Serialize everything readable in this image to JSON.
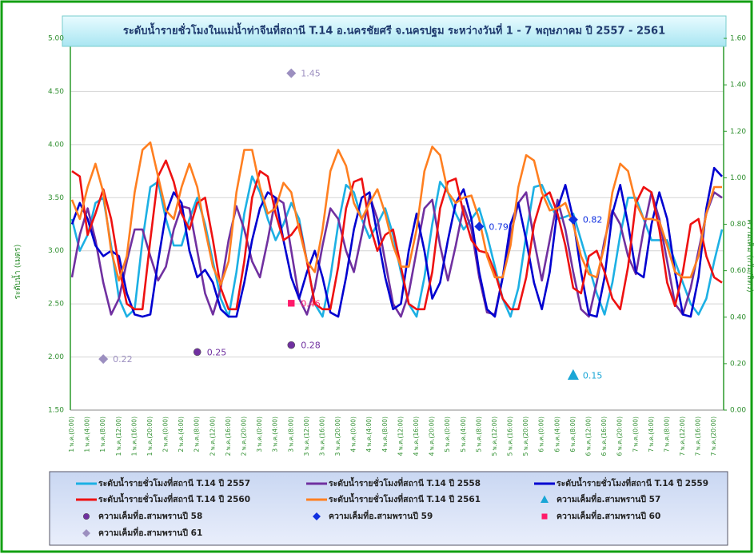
{
  "chart_data": {
    "type": "line",
    "title": "ระดับน้ำรายชั่วโมงในแม่น้ำท่าจีนที่สถานี T.14 อ.นครชัยศรี จ.นครปฐม ระหว่างวันที่ 1 - 7 พฤษภาคม ปี 2557 - 2561",
    "y_label": "ระดับน้ำ (เมตร)",
    "y2_label": "ความเค็ม (กรัม/ลิตร)",
    "categories": [
      "1 พ.ค.(0:00)",
      null,
      "1 พ.ค.(4:00)",
      null,
      "1 พ.ค.(8:00)",
      null,
      "1 พ.ค.(12:00)",
      null,
      "1 พ.ค.(16:00)",
      null,
      "1 พ.ค.(20:00)",
      null,
      "2 พ.ค.(0:00)",
      null,
      "2 พ.ค.(4:00)",
      null,
      "2 พ.ค.(8:00)",
      null,
      "2 พ.ค.(12:00)",
      null,
      "2 พ.ค.(16:00)",
      null,
      "2 พ.ค.(20:00)",
      null,
      "3 พ.ค.(0:00)",
      null,
      "3 พ.ค.(4:00)",
      null,
      "3 พ.ค.(8:00)",
      null,
      "3 พ.ค.(12:00)",
      null,
      "3 พ.ค.(16:00)",
      null,
      "3 พ.ค.(20:00)",
      null,
      "4 พ.ค.(0:00)",
      null,
      "4 พ.ค.(4:00)",
      null,
      "4 พ.ค.(8:00)",
      null,
      "4 พ.ค.(12:00)",
      null,
      "4 พ.ค.(16:00)",
      null,
      "4 พ.ค.(20:00)",
      null,
      "5 พ.ค.(0:00)",
      null,
      "5 พ.ค.(4:00)",
      null,
      "5 พ.ค.(8:00)",
      null,
      "5 พ.ค.(12:00)",
      null,
      "5 พ.ค.(16:00)",
      null,
      "5 พ.ค.(20:00)",
      null,
      "6 พ.ค.(0:00)",
      null,
      "6 พ.ค.(4:00)",
      null,
      "6 พ.ค.(8:00)",
      null,
      "6 พ.ค.(12:00)",
      null,
      "6 พ.ค.(16:00)",
      null,
      "6 พ.ค.(20:00)",
      null,
      "7 พ.ค.(0:00)",
      null,
      "7 พ.ค.(4:00)",
      null,
      "7 พ.ค.(8:00)",
      null,
      "7 พ.ค.(12:00)",
      null,
      "7 พ.ค.(16:00)",
      null,
      "7 พ.ค.(20:00)",
      null
    ],
    "ylim": [
      1.5,
      5
    ],
    "yticks": [
      {
        "value": 1.5,
        "label": "1.50"
      },
      {
        "value": 2,
        "label": "2.00"
      },
      {
        "value": 2.5,
        "label": "2.50"
      },
      {
        "value": 3,
        "label": "3.00"
      },
      {
        "value": 3.5,
        "label": "3.50"
      },
      {
        "value": 4,
        "label": "4.00"
      },
      {
        "value": 4.5,
        "label": "4.50"
      },
      {
        "value": 5,
        "label": "5.00"
      }
    ],
    "y2lim": [
      0,
      1.6
    ],
    "y2ticks": [
      {
        "value": 0,
        "label": "0.00"
      },
      {
        "value": 0.2,
        "label": "0.20"
      },
      {
        "value": 0.4,
        "label": "0.40"
      },
      {
        "value": 0.6,
        "label": "0.60"
      },
      {
        "value": 0.8,
        "label": "0.80"
      },
      {
        "value": 1,
        "label": "1.00"
      },
      {
        "value": 1.2,
        "label": "1.20"
      },
      {
        "value": 1.4,
        "label": "1.40"
      },
      {
        "value": 1.6,
        "label": "1.60"
      }
    ],
    "grid": true,
    "series": [
      {
        "name": "ระดับน้ำรายชั่วโมงที่สถานี T.14 ปี 2557",
        "type": "line",
        "color": "#1cb0e4",
        "values": [
          3.3,
          3.0,
          3.15,
          3.45,
          3.5,
          3.05,
          2.55,
          2.38,
          2.45,
          3.1,
          3.6,
          3.65,
          3.3,
          3.05,
          3.05,
          3.3,
          3.5,
          3.25,
          2.9,
          2.55,
          2.38,
          2.8,
          3.35,
          3.7,
          3.55,
          3.3,
          3.1,
          3.25,
          3.45,
          3.3,
          2.9,
          2.5,
          2.38,
          2.75,
          3.25,
          3.62,
          3.55,
          3.3,
          3.12,
          3.25,
          3.4,
          3.15,
          2.8,
          2.5,
          2.38,
          2.75,
          3.25,
          3.65,
          3.55,
          3.35,
          3.2,
          3.3,
          3.4,
          3.15,
          2.85,
          2.55,
          2.38,
          2.65,
          3.15,
          3.6,
          3.62,
          3.45,
          3.3,
          3.32,
          3.35,
          3.1,
          2.85,
          2.6,
          2.4,
          2.7,
          3.15,
          3.5,
          3.5,
          3.3,
          3.1,
          3.1,
          3.1,
          2.9,
          2.7,
          2.5,
          2.4,
          2.55,
          2.9,
          3.2
        ]
      },
      {
        "name": "ระดับน้ำรายชั่วโมงที่สถานี T.14  ปี 2558",
        "type": "line",
        "color": "#7030a0",
        "values": [
          2.75,
          3.15,
          3.4,
          3.1,
          2.7,
          2.4,
          2.55,
          2.9,
          3.2,
          3.2,
          2.95,
          2.72,
          2.85,
          3.2,
          3.42,
          3.4,
          3.0,
          2.6,
          2.4,
          2.65,
          3.1,
          3.42,
          3.2,
          2.9,
          2.75,
          3.1,
          3.5,
          3.45,
          3.0,
          2.55,
          2.4,
          2.65,
          3.05,
          3.4,
          3.3,
          3.0,
          2.8,
          3.15,
          3.52,
          3.3,
          2.9,
          2.5,
          2.38,
          2.6,
          3.0,
          3.4,
          3.48,
          3.05,
          2.72,
          3.05,
          3.42,
          3.2,
          2.75,
          2.42,
          2.4,
          2.75,
          3.15,
          3.45,
          3.55,
          3.1,
          2.72,
          3.1,
          3.48,
          3.2,
          2.8,
          2.45,
          2.38,
          2.7,
          3.1,
          3.38,
          3.25,
          2.95,
          2.78,
          3.2,
          3.55,
          3.3,
          2.9,
          2.5,
          2.4,
          2.65,
          3.0,
          3.35,
          3.55,
          3.5
        ]
      },
      {
        "name": "ระดับน้ำรายชั่วโมงที่สถานี T.14 ปี 2559",
        "type": "line",
        "color": "#0000d0",
        "values": [
          3.25,
          3.45,
          3.3,
          3.05,
          2.95,
          3.0,
          2.95,
          2.6,
          2.4,
          2.38,
          2.4,
          2.9,
          3.35,
          3.55,
          3.45,
          3.0,
          2.75,
          2.82,
          2.7,
          2.45,
          2.38,
          2.38,
          2.7,
          3.1,
          3.4,
          3.55,
          3.5,
          3.1,
          2.75,
          2.55,
          2.8,
          3.0,
          2.75,
          2.42,
          2.38,
          2.75,
          3.2,
          3.5,
          3.55,
          3.15,
          2.75,
          2.45,
          2.5,
          3.0,
          3.35,
          3.0,
          2.55,
          2.7,
          3.1,
          3.45,
          3.58,
          3.3,
          2.8,
          2.45,
          2.38,
          2.75,
          3.25,
          3.45,
          3.1,
          2.7,
          2.45,
          2.8,
          3.4,
          3.62,
          3.3,
          2.8,
          2.4,
          2.38,
          2.75,
          3.35,
          3.62,
          3.25,
          2.8,
          2.75,
          3.25,
          3.55,
          3.3,
          2.8,
          2.4,
          2.38,
          2.75,
          3.4,
          3.78,
          3.7
        ]
      },
      {
        "name": "ระดับน้ำรายชั่วโมงที่สถานี T.14 ปี 2560",
        "type": "line",
        "color": "#ee1111",
        "values": [
          3.75,
          3.7,
          3.15,
          3.35,
          3.58,
          3.3,
          2.85,
          2.5,
          2.45,
          2.45,
          3.1,
          3.7,
          3.85,
          3.65,
          3.35,
          3.2,
          3.45,
          3.5,
          3.1,
          2.65,
          2.45,
          2.45,
          2.9,
          3.5,
          3.75,
          3.7,
          3.35,
          3.1,
          3.15,
          3.25,
          2.9,
          2.5,
          2.45,
          2.45,
          2.85,
          3.4,
          3.65,
          3.68,
          3.25,
          3.0,
          3.15,
          3.2,
          2.85,
          2.5,
          2.45,
          2.45,
          2.8,
          3.4,
          3.65,
          3.68,
          3.35,
          3.1,
          3.0,
          2.98,
          2.8,
          2.55,
          2.45,
          2.45,
          2.75,
          3.25,
          3.5,
          3.55,
          3.35,
          3.05,
          2.65,
          2.6,
          2.95,
          3.0,
          2.8,
          2.55,
          2.45,
          2.85,
          3.45,
          3.6,
          3.55,
          3.2,
          2.7,
          2.48,
          2.8,
          3.25,
          3.3,
          2.95,
          2.75,
          2.7
        ]
      },
      {
        "name": "ระดับน้ำรายชั่วโมงที่สถานี T.14 ปี 2561",
        "type": "line",
        "color": "#ff7f20",
        "values": [
          3.48,
          3.3,
          3.6,
          3.82,
          3.55,
          3.0,
          2.72,
          2.95,
          3.55,
          3.95,
          4.02,
          3.7,
          3.38,
          3.3,
          3.6,
          3.82,
          3.6,
          3.2,
          2.85,
          2.68,
          2.9,
          3.55,
          3.95,
          3.95,
          3.6,
          3.35,
          3.4,
          3.64,
          3.55,
          3.2,
          2.9,
          2.8,
          3.2,
          3.75,
          3.95,
          3.8,
          3.45,
          3.3,
          3.45,
          3.58,
          3.35,
          3.05,
          2.85,
          2.85,
          3.2,
          3.75,
          3.98,
          3.9,
          3.55,
          3.45,
          3.5,
          3.52,
          3.3,
          2.95,
          2.75,
          2.75,
          3.05,
          3.6,
          3.9,
          3.85,
          3.55,
          3.38,
          3.4,
          3.45,
          3.25,
          2.95,
          2.78,
          2.75,
          3.05,
          3.55,
          3.82,
          3.75,
          3.45,
          3.3,
          3.3,
          3.28,
          3.05,
          2.8,
          2.75,
          2.75,
          2.95,
          3.35,
          3.6,
          3.6
        ]
      },
      {
        "name": "ความเค็มที่อ.สามพรานปี 57",
        "type": "scatter",
        "marker": "triangle",
        "axis": "y2",
        "color": "#1aa6d6",
        "x": [
          "6 พ.ค.(8:00)"
        ],
        "values": [
          0.15
        ]
      },
      {
        "name": "ความเค็มที่อ.สามพรานปี 58",
        "type": "scatter",
        "marker": "circle",
        "axis": "y2",
        "color": "#7030a0",
        "x": [
          "2 พ.ค.(8:00)",
          "3 พ.ค.(8:00)"
        ],
        "values": [
          0.25,
          0.28
        ]
      },
      {
        "name": "ความเค็มที่อ.สามพรานปี 59",
        "type": "scatter",
        "marker": "diamond",
        "axis": "y2",
        "color": "#1030e0",
        "x": [
          "5 พ.ค.(8:00)",
          "6 พ.ค.(8:00)"
        ],
        "values": [
          0.79,
          0.82
        ]
      },
      {
        "name": "ความเค็มที่อ.สามพรานปี 60",
        "type": "scatter",
        "marker": "square",
        "axis": "y2",
        "color": "#ff1a6a",
        "x": [
          "3 พ.ค.(8:00)"
        ],
        "values": [
          0.46
        ]
      },
      {
        "name": "ความเค็มที่อ.สามพรานปี 61",
        "type": "scatter",
        "marker": "diamond",
        "axis": "y2",
        "color": "#9c8fc0",
        "x": [
          "1 พ.ค.(8:00)",
          "3 พ.ค.(8:00)"
        ],
        "values": [
          0.22,
          1.45
        ]
      }
    ]
  }
}
